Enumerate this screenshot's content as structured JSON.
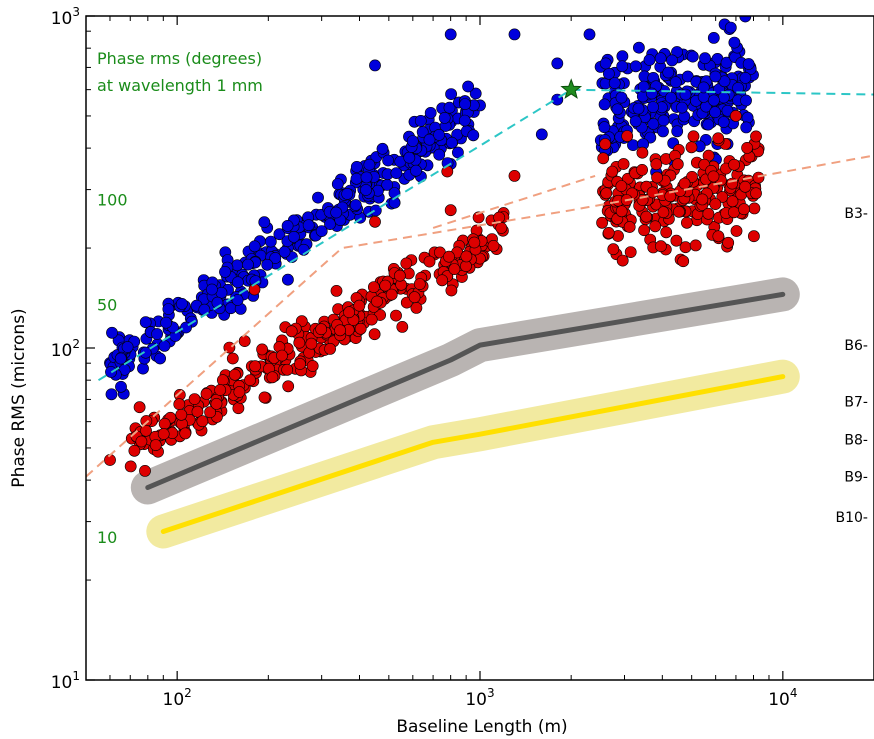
{
  "chart_data": {
    "type": "scatter",
    "title": "",
    "xlabel": "Baseline Length (m)",
    "ylabel": "Phase RMS (microns)",
    "x_scale": "log",
    "y_scale": "log",
    "xlim": [
      50,
      20000
    ],
    "ylim": [
      10,
      1000
    ],
    "grid": false,
    "x_ticks": [
      {
        "value": 100,
        "base": "10",
        "exp": "2"
      },
      {
        "value": 1000,
        "base": "10",
        "exp": "3"
      },
      {
        "value": 10000,
        "base": "10",
        "exp": "4"
      }
    ],
    "y_ticks": [
      {
        "value": 10,
        "base": "10",
        "exp": "1"
      },
      {
        "value": 100,
        "base": "10",
        "exp": "2"
      },
      {
        "value": 1000,
        "base": "10",
        "exp": "3"
      }
    ],
    "annotation": {
      "line1": "Phase rms (degrees)",
      "line2": "at wavelength 1 mm",
      "color": "#1a8c1a"
    },
    "degree_labels": [
      {
        "text": "100",
        "y": 280
      },
      {
        "text": "50",
        "y": 135
      },
      {
        "text": "10",
        "y": 27
      }
    ],
    "band_labels": [
      {
        "text": "B3-",
        "y": 255
      },
      {
        "text": "B6-",
        "y": 102
      },
      {
        "text": "B7-",
        "y": 69
      },
      {
        "text": "B8-",
        "y": 53
      },
      {
        "text": "B9-",
        "y": 41
      },
      {
        "text": "B10-",
        "y": 31
      }
    ],
    "star": {
      "x": 2000,
      "y": 600,
      "color": "#1f8c1f"
    },
    "series": [
      {
        "color": "#0000dd",
        "kind": "scatter",
        "clusters": [
          {
            "x_range": [
              60,
              1000
            ],
            "y_at_x0": 88,
            "y_at_x1": 520,
            "scatter": 0.08,
            "count": 340
          },
          {
            "x_range": [
              2500,
              8000
            ],
            "y_at_x0": 520,
            "y_at_x1": 620,
            "scatter": 0.16,
            "count": 250
          }
        ],
        "outliers": [
          [
            450,
            710
          ],
          [
            800,
            880
          ],
          [
            1300,
            880
          ],
          [
            1800,
            560
          ],
          [
            2300,
            880
          ],
          [
            1800,
            720
          ],
          [
            2600,
            720
          ],
          [
            600,
            420
          ],
          [
            1600,
            440
          ]
        ]
      },
      {
        "color": "#dd0000",
        "kind": "scatter",
        "clusters": [
          {
            "x_range": [
              70,
              1200
            ],
            "y_at_x0": 50,
            "y_at_x1": 225,
            "scatter": 0.08,
            "count": 330
          },
          {
            "x_range": [
              2500,
              8500
            ],
            "y_at_x0": 260,
            "y_at_x1": 310,
            "scatter": 0.15,
            "count": 230
          }
        ],
        "outliers": [
          [
            60,
            46
          ],
          [
            85,
            51
          ],
          [
            180,
            150
          ],
          [
            450,
            240
          ],
          [
            780,
            340
          ],
          [
            800,
            260
          ],
          [
            1300,
            330
          ],
          [
            7000,
            500
          ]
        ]
      },
      {
        "color": "#555555",
        "kind": "band",
        "halo_color": "#b9b4b2",
        "x": [
          80,
          800,
          1000,
          10000
        ],
        "y": [
          38,
          92,
          102,
          145
        ]
      },
      {
        "color": "#ffe000",
        "kind": "band",
        "halo_color": "#f2eaa0",
        "x": [
          90,
          700,
          1000,
          10000
        ],
        "y": [
          28,
          52,
          55,
          82
        ]
      },
      {
        "color": "#2cc6c6",
        "kind": "dashed",
        "x": [
          55,
          2000,
          20000
        ],
        "y": [
          80,
          600,
          580
        ]
      },
      {
        "color": "#f0a080",
        "kind": "dashed",
        "x": [
          50,
          350,
          2000,
          20000
        ],
        "y": [
          41,
          200,
          260,
          380
        ]
      },
      {
        "color": "#f0a080",
        "kind": "dashed",
        "x": [
          700,
          2400
        ],
        "y": [
          230,
          330
        ]
      }
    ]
  }
}
